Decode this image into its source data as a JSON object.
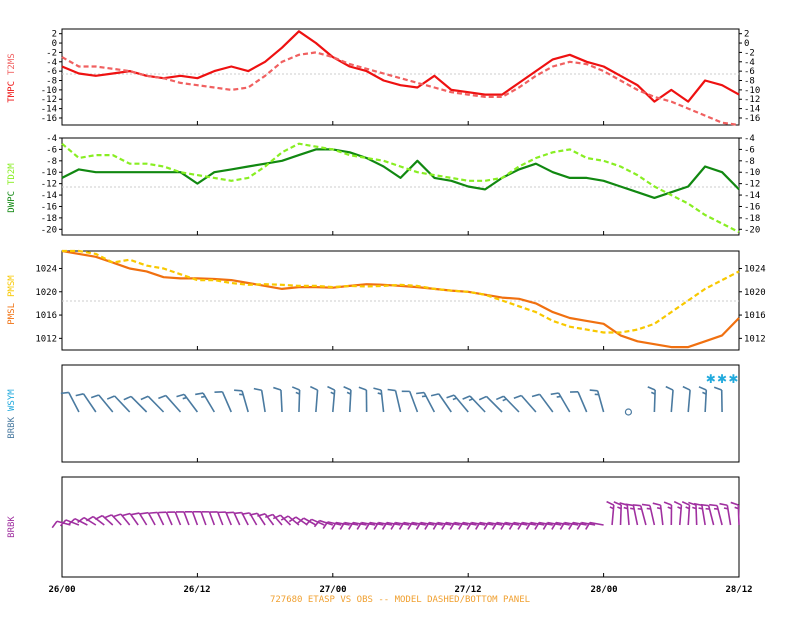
{
  "footer": "727680  ETASP VS OBS -- MODEL DASHED/BOTTOM PANEL",
  "x_ticks": [
    "26/00",
    "26/12",
    "27/00",
    "27/12",
    "28/00",
    "28/12"
  ],
  "colors": {
    "tmpc": "#ee1111",
    "t2ms": "#f06060",
    "dwpc": "#118811",
    "td2m": "#88ee22",
    "pmsl": "#f07010",
    "pmsm": "#f8c800",
    "barb_obs": "#4a7aa0",
    "barb_model": "#a030a0",
    "star": "#22aadd"
  },
  "chart_data": [
    {
      "type": "line",
      "panel": "temperature",
      "labels": {
        "obs": "TMPC",
        "model": "T2MS"
      },
      "x_hours": [
        0,
        1.5,
        3,
        4.5,
        6,
        7.5,
        9,
        10.5,
        12,
        13.5,
        15,
        16.5,
        18,
        19.5,
        21,
        22.5,
        24,
        25.5,
        27,
        28.5,
        30,
        31.5,
        33,
        34.5,
        36,
        37.5,
        39,
        40.5,
        42,
        43.5,
        45,
        46.5,
        48,
        49.5,
        51,
        52.5,
        54,
        55.5,
        57,
        58.5,
        60
      ],
      "yticks": [
        2,
        0,
        -2,
        -4,
        -6,
        -8,
        -10,
        -12,
        -14,
        -16
      ],
      "ylim": [
        -17.5,
        3
      ],
      "series": [
        {
          "name": "TMPC",
          "style": "solid",
          "values": [
            -5,
            -6.5,
            -7,
            -6.5,
            -6,
            -7,
            -7.5,
            -7,
            -7.5,
            -6,
            -5,
            -6,
            -4,
            -1,
            2.5,
            0,
            -3,
            -5,
            -6,
            -8,
            -9,
            -9.5,
            -7,
            -10,
            -10.5,
            -11,
            -11,
            -8.5,
            -6,
            -3.5,
            -2.5,
            -4,
            -5,
            -7,
            -9,
            -12.5,
            -10,
            -12.5,
            -8,
            -9,
            -11
          ]
        },
        {
          "name": "T2MS",
          "style": "dashed",
          "values": [
            -3,
            -5,
            -5,
            -5.5,
            -6,
            -7,
            -7.5,
            -8.5,
            -9,
            -9.5,
            -10,
            -9.5,
            -7,
            -4,
            -2.5,
            -2,
            -3,
            -4.5,
            -5.5,
            -6.5,
            -7.5,
            -8.5,
            -9.5,
            -10.5,
            -11,
            -11.5,
            -11.5,
            -9.5,
            -7,
            -5,
            -4,
            -4.5,
            -6,
            -8,
            -10,
            -11.5,
            -12.5,
            -14,
            -15.5,
            -17,
            -17.5
          ]
        }
      ]
    },
    {
      "type": "line",
      "panel": "dewpoint",
      "labels": {
        "obs": "DWPC",
        "model": "TD2M"
      },
      "x_hours": [
        0,
        1.5,
        3,
        4.5,
        6,
        7.5,
        9,
        10.5,
        12,
        13.5,
        15,
        16.5,
        18,
        19.5,
        21,
        22.5,
        24,
        25.5,
        27,
        28.5,
        30,
        31.5,
        33,
        34.5,
        36,
        37.5,
        39,
        40.5,
        42,
        43.5,
        45,
        46.5,
        48,
        49.5,
        51,
        52.5,
        54,
        55.5,
        57,
        58.5,
        60
      ],
      "yticks": [
        -4,
        -6,
        -8,
        -10,
        -12,
        -14,
        -16,
        -18,
        -20
      ],
      "ylim": [
        -21,
        -4
      ],
      "series": [
        {
          "name": "DWPC",
          "style": "solid",
          "values": [
            -11,
            -9.5,
            -10,
            -10,
            -10,
            -10,
            -10,
            -10,
            -12,
            -10,
            -9.5,
            -9,
            -8.5,
            -8,
            -7,
            -6,
            -6,
            -6.5,
            -7.5,
            -9,
            -11,
            -8,
            -11,
            -11.5,
            -12.5,
            -13,
            -11,
            -9.5,
            -8.5,
            -10,
            -11,
            -11,
            -11.5,
            -12.5,
            -13.5,
            -14.5,
            -13.5,
            -12.5,
            -9,
            -10,
            -13
          ]
        },
        {
          "name": "TD2M",
          "style": "dashed",
          "values": [
            -5,
            -7.5,
            -7,
            -7,
            -8.5,
            -8.5,
            -9,
            -10,
            -10.5,
            -11,
            -11.5,
            -11,
            -9,
            -6.5,
            -5,
            -5.5,
            -6,
            -7,
            -7.5,
            -8,
            -9,
            -10,
            -10.5,
            -11,
            -11.5,
            -11.5,
            -11,
            -9,
            -7.5,
            -6.5,
            -6,
            -7.5,
            -8,
            -9,
            -10.5,
            -12.5,
            -14,
            -15.5,
            -17.5,
            -19,
            -20.5
          ]
        }
      ]
    },
    {
      "type": "line",
      "panel": "pressure",
      "labels": {
        "obs": "PMSL",
        "model": "PMSM"
      },
      "x_hours": [
        0,
        1.5,
        3,
        4.5,
        6,
        7.5,
        9,
        10.5,
        12,
        13.5,
        15,
        16.5,
        18,
        19.5,
        21,
        22.5,
        24,
        25.5,
        27,
        28.5,
        30,
        31.5,
        33,
        34.5,
        36,
        37.5,
        39,
        40.5,
        42,
        43.5,
        45,
        46.5,
        48,
        49.5,
        51,
        52.5,
        54,
        55.5,
        57,
        58.5,
        60
      ],
      "yticks": [
        1024,
        1020,
        1016,
        1012
      ],
      "ylim": [
        1010,
        1027
      ],
      "series": [
        {
          "name": "PMSL",
          "style": "solid",
          "values": [
            1027,
            1026.5,
            1026,
            1025,
            1024,
            1023.5,
            1022.5,
            1022.3,
            1022.3,
            1022.2,
            1022,
            1021.5,
            1021,
            1020.5,
            1020.8,
            1020.8,
            1020.7,
            1021,
            1021.3,
            1021.2,
            1021,
            1020.8,
            1020.5,
            1020.2,
            1020,
            1019.5,
            1019,
            1018.8,
            1018,
            1016.5,
            1015.5,
            1015,
            1014.5,
            1012.5,
            1011.5,
            1011,
            1010.5,
            1010.5,
            1011.5,
            1012.5,
            1015.5
          ]
        },
        {
          "name": "PMSM",
          "style": "dashed",
          "values": [
            1027,
            1027,
            1026.5,
            1025,
            1025.5,
            1024.5,
            1024,
            1023,
            1022,
            1022,
            1021.5,
            1021.2,
            1021.3,
            1021.2,
            1021,
            1021,
            1020.8,
            1021,
            1020.9,
            1021,
            1021.2,
            1021,
            1020.5,
            1020.2,
            1020,
            1019.5,
            1018.5,
            1017.5,
            1016.5,
            1015,
            1014,
            1013.5,
            1013,
            1013,
            1013.5,
            1014.5,
            1016.5,
            1018.5,
            1020.5,
            1022,
            1023.5
          ]
        }
      ]
    },
    {
      "type": "barbs",
      "panel": "obs_wind",
      "labels": {
        "obs": "BRBK",
        "model": "WSYM"
      },
      "stars_at_hours": [
        57.5,
        58.5,
        59.5
      ]
    },
    {
      "type": "barbs",
      "panel": "model_wind",
      "labels": {
        "obs": "BRBK"
      }
    }
  ]
}
